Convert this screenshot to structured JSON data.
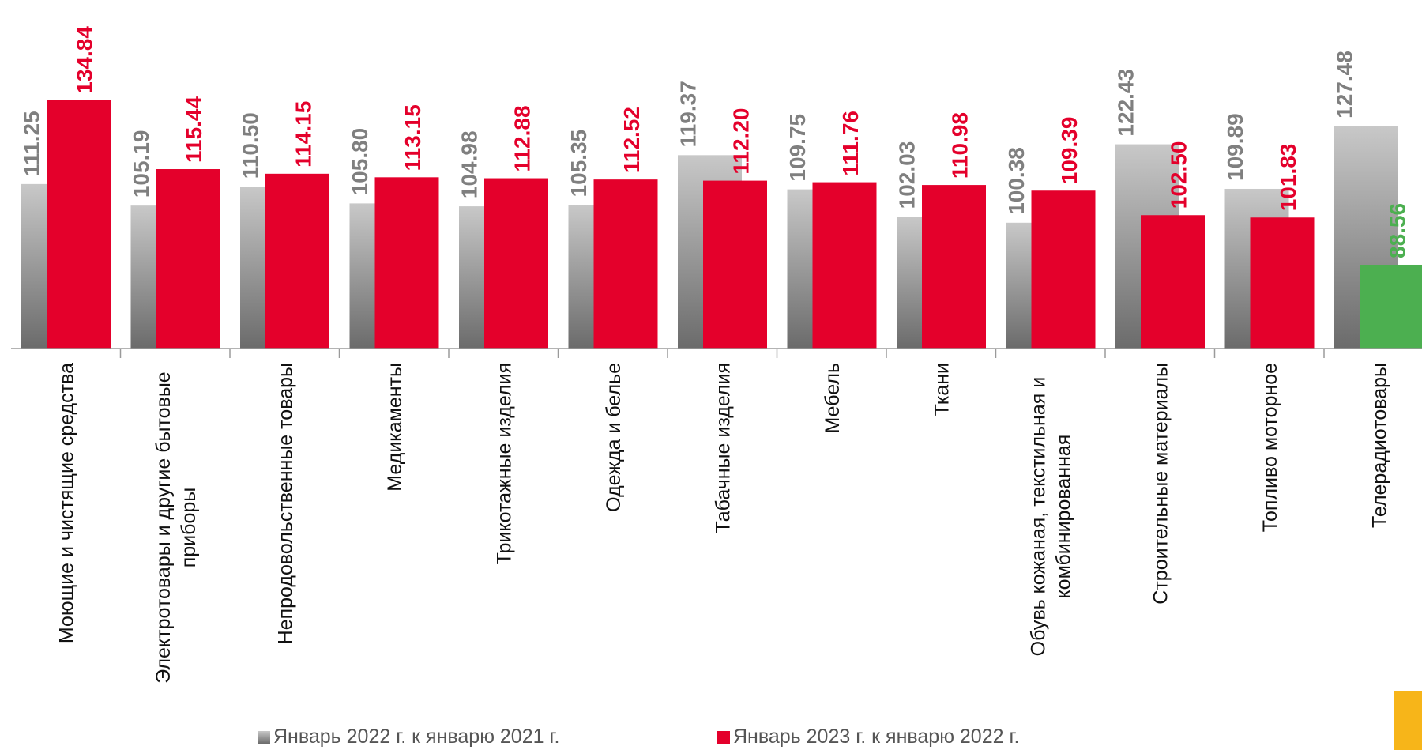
{
  "chart_data": {
    "type": "bar",
    "categories": [
      "Моющие и чистящие средства",
      "Электротовары и другие бытовые приборы",
      "Непродовольственные товары",
      "Медикаменты",
      "Трикотажные изделия",
      "Одежда и белье",
      "Табачные изделия",
      "Мебель",
      "Ткани",
      "Обувь кожаная, текстильная и комбинированная",
      "Строительные материалы",
      "Топливо моторное",
      "Телерадиотовары"
    ],
    "category_lines": [
      [
        "Моющие и чистящие средства"
      ],
      [
        "Электротовары и другие бытовые",
        "приборы"
      ],
      [
        "Непродовольственные товары"
      ],
      [
        "Медикаменты"
      ],
      [
        "Трикотажные изделия"
      ],
      [
        "Одежда и белье"
      ],
      [
        "Табачные изделия"
      ],
      [
        "Мебель"
      ],
      [
        "Ткани"
      ],
      [
        "Обувь кожаная, текстильная и",
        "комбинированная"
      ],
      [
        "Строительные материалы"
      ],
      [
        "Топливо моторное"
      ],
      [
        "Телерадиотовары"
      ]
    ],
    "series": [
      {
        "name": "Январь 2022 г. к январю 2021 г.",
        "values": [
          111.25,
          105.19,
          110.5,
          105.8,
          104.98,
          105.35,
          119.37,
          109.75,
          102.03,
          100.38,
          122.43,
          109.89,
          127.48
        ],
        "labels": [
          "111.25",
          "105.19",
          "110.50",
          "105.80",
          "104.98",
          "105.35",
          "119.37",
          "109.75",
          "102.03",
          "100.38",
          "122.43",
          "109.89",
          "127.48"
        ]
      },
      {
        "name": "Январь 2023 г. к январю 2022 г.",
        "values": [
          134.84,
          115.44,
          114.15,
          113.15,
          112.88,
          112.52,
          112.2,
          111.76,
          110.98,
          109.39,
          102.5,
          101.83,
          88.56
        ],
        "labels": [
          "134.84",
          "115.44",
          "114.15",
          "113.15",
          "112.88",
          "112.52",
          "112.20",
          "111.76",
          "110.98",
          "109.39",
          "102.50",
          "101.83",
          "88.56"
        ]
      }
    ],
    "baseline_value": 65,
    "colors": {
      "series1_top": "#c8c8c8",
      "series1_bottom": "#6b6b6b",
      "series1_label": "#7f7f7f",
      "series2": "#e4002b",
      "series2_label": "#e4002b",
      "below_100": "#4caf50",
      "below_100_label": "#4caf50",
      "axis": "#9a9a9a"
    },
    "legend": {
      "placement": "bottom"
    }
  }
}
